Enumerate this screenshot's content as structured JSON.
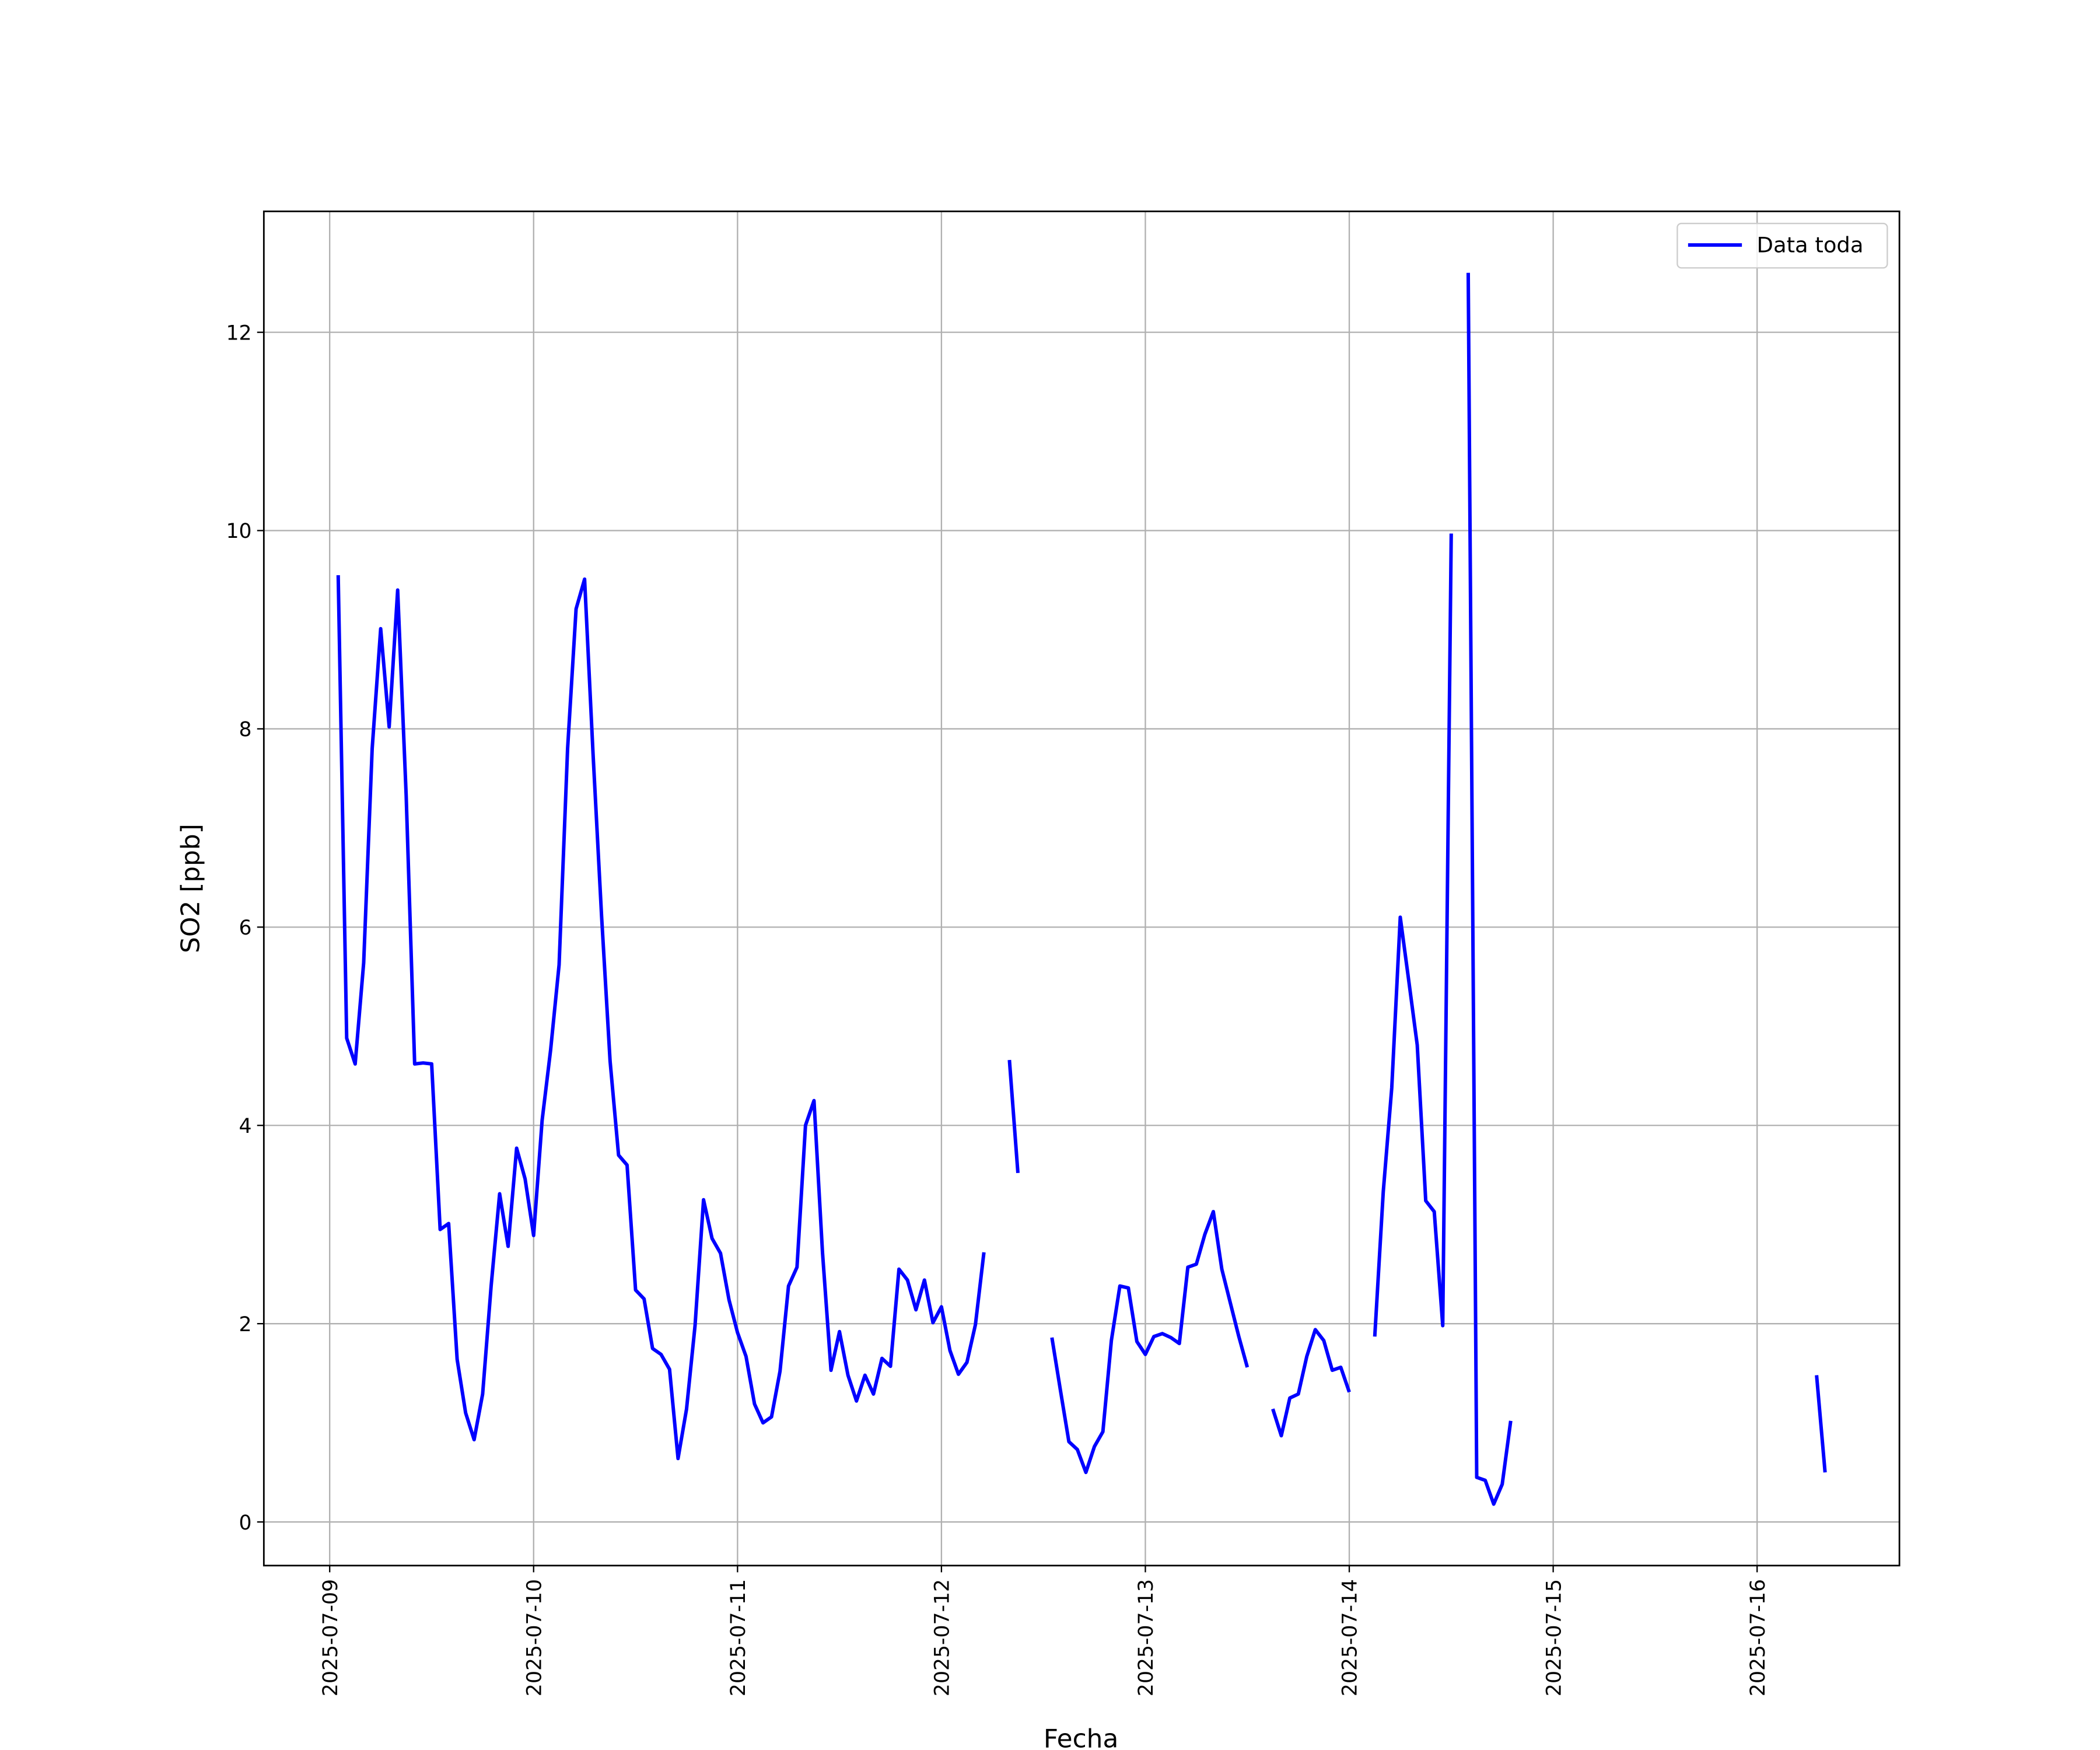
{
  "chart_data": {
    "type": "line",
    "xlabel": "Fecha",
    "ylabel": "SO2 [ppb]",
    "x": [
      "2025-07-09 01:00",
      "2025-07-09 02:00",
      "2025-07-09 03:00",
      "2025-07-09 04:00",
      "2025-07-09 05:00",
      "2025-07-09 06:00",
      "2025-07-09 07:00",
      "2025-07-09 08:00",
      "2025-07-09 09:00",
      "2025-07-09 10:00",
      "2025-07-09 11:00",
      "2025-07-09 12:00",
      "2025-07-09 13:00",
      "2025-07-09 14:00",
      "2025-07-09 15:00",
      "2025-07-09 16:00",
      "2025-07-09 17:00",
      "2025-07-09 18:00",
      "2025-07-09 19:00",
      "2025-07-09 20:00",
      "2025-07-09 21:00",
      "2025-07-09 22:00",
      "2025-07-09 23:00",
      "2025-07-10 00:00",
      "2025-07-10 01:00",
      "2025-07-10 02:00",
      "2025-07-10 03:00",
      "2025-07-10 04:00",
      "2025-07-10 05:00",
      "2025-07-10 06:00",
      "2025-07-10 07:00",
      "2025-07-10 08:00",
      "2025-07-10 09:00",
      "2025-07-10 10:00",
      "2025-07-10 11:00",
      "2025-07-10 12:00",
      "2025-07-10 13:00",
      "2025-07-10 14:00",
      "2025-07-10 15:00",
      "2025-07-10 16:00",
      "2025-07-10 17:00",
      "2025-07-10 18:00",
      "2025-07-10 19:00",
      "2025-07-10 20:00",
      "2025-07-10 21:00",
      "2025-07-10 22:00",
      "2025-07-10 23:00",
      "2025-07-11 00:00",
      "2025-07-11 01:00",
      "2025-07-11 02:00",
      "2025-07-11 03:00",
      "2025-07-11 04:00",
      "2025-07-11 05:00",
      "2025-07-11 06:00",
      "2025-07-11 07:00",
      "2025-07-11 08:00",
      "2025-07-11 09:00",
      "2025-07-11 10:00",
      "2025-07-11 11:00",
      "2025-07-11 12:00",
      "2025-07-11 13:00",
      "2025-07-11 14:00",
      "2025-07-11 15:00",
      "2025-07-11 16:00",
      "2025-07-11 17:00",
      "2025-07-11 18:00",
      "2025-07-11 19:00",
      "2025-07-11 20:00",
      "2025-07-11 21:00",
      "2025-07-11 22:00",
      "2025-07-11 23:00",
      "2025-07-12 00:00",
      "2025-07-12 01:00",
      "2025-07-12 02:00",
      "2025-07-12 03:00",
      "2025-07-12 04:00",
      "2025-07-12 05:00",
      "2025-07-12 06:00",
      "2025-07-12 07:00",
      "2025-07-12 08:00",
      "2025-07-12 09:00",
      "2025-07-12 10:00",
      "2025-07-12 11:00",
      "2025-07-12 12:00",
      "2025-07-12 13:00",
      "2025-07-12 14:00",
      "2025-07-12 15:00",
      "2025-07-12 16:00",
      "2025-07-12 17:00",
      "2025-07-12 18:00",
      "2025-07-12 19:00",
      "2025-07-12 20:00",
      "2025-07-12 21:00",
      "2025-07-12 22:00",
      "2025-07-12 23:00",
      "2025-07-13 00:00",
      "2025-07-13 01:00",
      "2025-07-13 02:00",
      "2025-07-13 03:00",
      "2025-07-13 04:00",
      "2025-07-13 05:00",
      "2025-07-13 06:00",
      "2025-07-13 07:00",
      "2025-07-13 08:00",
      "2025-07-13 09:00",
      "2025-07-13 10:00",
      "2025-07-13 11:00",
      "2025-07-13 12:00",
      "2025-07-13 13:00",
      "2025-07-13 14:00",
      "2025-07-13 15:00",
      "2025-07-13 16:00",
      "2025-07-13 17:00",
      "2025-07-13 18:00",
      "2025-07-13 19:00",
      "2025-07-13 20:00",
      "2025-07-13 21:00",
      "2025-07-13 22:00",
      "2025-07-13 23:00",
      "2025-07-14 00:00",
      "2025-07-14 01:00",
      "2025-07-14 02:00",
      "2025-07-14 03:00",
      "2025-07-14 04:00",
      "2025-07-14 05:00",
      "2025-07-14 06:00",
      "2025-07-14 07:00",
      "2025-07-14 08:00",
      "2025-07-14 09:00",
      "2025-07-14 10:00",
      "2025-07-14 11:00",
      "2025-07-14 12:00",
      "2025-07-14 13:00",
      "2025-07-14 14:00",
      "2025-07-14 15:00",
      "2025-07-14 16:00",
      "2025-07-14 17:00",
      "2025-07-14 18:00",
      "2025-07-14 19:00",
      "2025-07-14 20:00",
      "2025-07-14 21:00",
      "2025-07-14 22:00",
      "2025-07-14 23:00",
      "2025-07-15 00:00",
      "2025-07-15 01:00",
      "2025-07-15 02:00",
      "2025-07-15 03:00",
      "2025-07-15 04:00",
      "2025-07-15 05:00",
      "2025-07-15 06:00",
      "2025-07-15 07:00",
      "2025-07-15 08:00",
      "2025-07-15 09:00",
      "2025-07-15 10:00",
      "2025-07-15 11:00",
      "2025-07-15 12:00",
      "2025-07-15 13:00",
      "2025-07-15 14:00",
      "2025-07-15 15:00",
      "2025-07-15 16:00",
      "2025-07-15 17:00",
      "2025-07-15 18:00",
      "2025-07-15 19:00",
      "2025-07-15 20:00",
      "2025-07-15 21:00",
      "2025-07-15 22:00",
      "2025-07-15 23:00",
      "2025-07-16 00:00",
      "2025-07-16 01:00",
      "2025-07-16 02:00",
      "2025-07-16 03:00",
      "2025-07-16 04:00",
      "2025-07-16 05:00",
      "2025-07-16 06:00",
      "2025-07-16 07:00",
      "2025-07-16 08:00"
    ],
    "series": [
      {
        "name": "Data toda",
        "color": "#0000ff",
        "values": [
          9.55,
          4.88,
          4.62,
          5.64,
          7.8,
          9.01,
          8.02,
          9.4,
          7.33,
          4.62,
          4.63,
          4.62,
          2.95,
          3.01,
          1.64,
          1.1,
          0.83,
          1.29,
          2.38,
          3.31,
          2.78,
          3.77,
          3.46,
          2.89,
          4.05,
          4.76,
          5.62,
          7.8,
          9.21,
          9.51,
          7.74,
          6.11,
          4.65,
          3.7,
          3.6,
          2.34,
          2.25,
          1.75,
          1.69,
          1.54,
          0.64,
          1.14,
          1.98,
          3.25,
          2.86,
          2.71,
          2.24,
          1.91,
          1.67,
          1.19,
          1.0,
          1.06,
          1.52,
          2.38,
          2.57,
          4.0,
          4.25,
          2.72,
          1.53,
          1.92,
          1.48,
          1.22,
          1.48,
          1.29,
          1.65,
          1.57,
          2.55,
          2.44,
          2.14,
          2.44,
          2.01,
          2.17,
          1.73,
          1.49,
          1.61,
          1.99,
          2.72,
          null,
          null,
          4.66,
          3.52,
          null,
          null,
          null,
          1.86,
          1.33,
          0.81,
          0.73,
          0.5,
          0.76,
          0.91,
          1.83,
          2.38,
          2.36,
          1.82,
          1.69,
          1.87,
          1.9,
          1.86,
          1.8,
          2.57,
          2.6,
          2.9,
          3.13,
          2.55,
          2.21,
          1.87,
          1.56,
          null,
          null,
          1.14,
          0.87,
          1.25,
          1.29,
          1.67,
          1.94,
          1.83,
          1.53,
          1.56,
          1.31,
          null,
          null,
          1.87,
          3.33,
          4.38,
          6.1,
          5.46,
          4.81,
          3.24,
          3.13,
          1.98,
          9.97,
          null,
          12.6,
          0.45,
          0.42,
          0.18,
          0.38,
          1.02,
          null,
          null,
          null,
          null,
          null,
          null,
          null,
          null,
          null,
          null,
          null,
          null,
          null,
          null,
          null,
          null,
          null,
          null,
          null,
          null,
          null,
          null,
          null,
          null,
          null,
          null,
          null,
          null,
          null,
          null,
          null,
          null,
          null,
          null,
          null,
          1.48,
          0.5
        ]
      }
    ],
    "xlim": [
      "2025-07-08 16:15",
      "2025-07-16 16:45"
    ],
    "xticks": [
      "2025-07-09",
      "2025-07-10",
      "2025-07-11",
      "2025-07-12",
      "2025-07-13",
      "2025-07-14",
      "2025-07-15",
      "2025-07-16"
    ],
    "ylim": [
      -0.44,
      13.22
    ],
    "yticks": [
      0,
      2,
      4,
      6,
      8,
      10,
      12
    ],
    "grid": true,
    "legend": "upper right"
  }
}
